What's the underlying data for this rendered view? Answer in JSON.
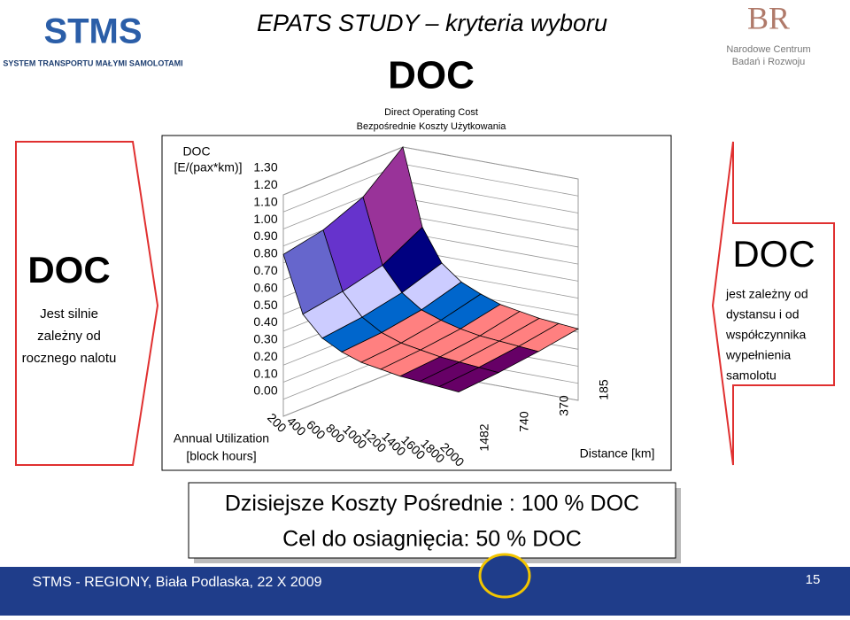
{
  "header": {
    "logo": "STMS",
    "logo_subtitle": "SYSTEM TRANSPORTU MAŁYMI SAMOLOTAMI",
    "title": "EPATS STUDY – kryteria wyboru",
    "partner": [
      "Narodowe Centrum",
      "Badań i Rozwoju"
    ]
  },
  "left_note": {
    "title": "DOC",
    "lines": [
      "Jest silnie",
      "zależny od",
      "rocznego nalotu"
    ]
  },
  "right_note": {
    "title": "DOC",
    "lines": [
      "jest zależny od",
      "dystansu i od",
      "współczynnika",
      "wypełnienia",
      "samolotu"
    ]
  },
  "summary": [
    "Dzisiejsze Koszty Pośrednie : 100 % DOC",
    "Cel do osiagnięcia:   50 % DOC"
  ],
  "footer": {
    "text": "STMS - REGIONY, Biała Podlaska, 22 X 2009",
    "page": "15"
  },
  "chart_data": {
    "type": "surface",
    "title": "DOC",
    "subtitle": [
      "Direct Operating Cost",
      "Bezpośrednie Koszty Użytkowania"
    ],
    "ylabel": [
      "DOC",
      "[E/(pax*km)]"
    ],
    "xlabel": [
      "Annual Utilization",
      "[block hours]"
    ],
    "zlabel": "Distance [km]",
    "categories": [
      "200",
      "400",
      "600",
      "800",
      "1000",
      "1200",
      "1400",
      "1600",
      "1800",
      "2000"
    ],
    "series": [
      {
        "name": "1482",
        "values": [
          0.95,
          0.62,
          0.5,
          0.44,
          0.4,
          0.38,
          0.36,
          0.35,
          0.34,
          0.33
        ]
      },
      {
        "name": "740",
        "values": [
          1.0,
          0.66,
          0.53,
          0.46,
          0.42,
          0.4,
          0.38,
          0.37,
          0.36,
          0.35
        ]
      },
      {
        "name": "370",
        "values": [
          1.1,
          0.72,
          0.58,
          0.5,
          0.46,
          0.43,
          0.41,
          0.4,
          0.39,
          0.38
        ]
      },
      {
        "name": "185",
        "values": [
          1.3,
          0.85,
          0.66,
          0.57,
          0.52,
          0.48,
          0.46,
          0.44,
          0.43,
          0.42
        ]
      }
    ],
    "ylim": [
      0,
      1.3
    ],
    "yticks": [
      {
        "value": 0,
        "label": "0.00"
      },
      {
        "value": 0.1,
        "label": "0.10"
      },
      {
        "value": 0.2,
        "label": "0.20"
      },
      {
        "value": 0.3,
        "label": "0.30"
      },
      {
        "value": 0.4,
        "label": "0.40"
      },
      {
        "value": 0.5,
        "label": "0.50"
      },
      {
        "value": 0.6,
        "label": "0.60"
      },
      {
        "value": 0.7,
        "label": "0.70"
      },
      {
        "value": 0.8,
        "label": "0.80"
      },
      {
        "value": 0.9,
        "label": "0.90"
      },
      {
        "value": 1.0,
        "label": "1.00"
      },
      {
        "value": 1.1,
        "label": "1.10"
      },
      {
        "value": 1.2,
        "label": "1.20"
      },
      {
        "value": 1.3,
        "label": "1.30"
      }
    ],
    "band_colors": [
      "#ffffff",
      "#ccffff",
      "#ccffff",
      "#660066",
      "#ff8080",
      "#0066cc",
      "#ccccff",
      "#000080",
      "#6666cc",
      "#6633cc",
      "#993399",
      "#ffff00",
      "#ffff00",
      "#33ffff"
    ],
    "grid": true
  }
}
